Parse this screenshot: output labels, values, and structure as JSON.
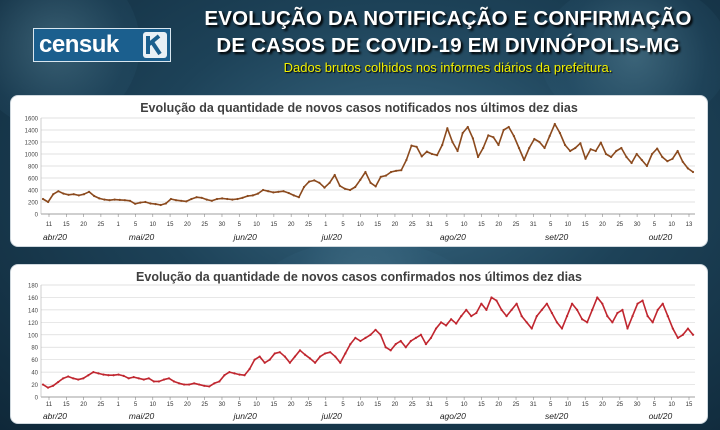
{
  "header": {
    "logo_text": "censuk",
    "logo_tagline": "",
    "title_line1": "EVOLUÇÃO DA NOTIFICAÇÃO E CONFIRMAÇÃO",
    "title_line2": "DE CASOS DE COVID-19 EM DIVINÓPOLIS-MG",
    "subtitle": "Dados brutos colhidos nos informes diários da prefeitura."
  },
  "colors": {
    "notified_line": "#8b4a1e",
    "confirmed_line": "#c0262f",
    "title_yellow": "#f2f200"
  },
  "chart_data": [
    {
      "type": "line",
      "title": "Evolução da quantidade de novos casos notificados nos últimos dez dias",
      "ylim": [
        0,
        1600
      ],
      "yticks": [
        0,
        200,
        400,
        600,
        800,
        1000,
        1200,
        1400,
        1600
      ],
      "grid": true,
      "xlabel": "",
      "ylabel": "",
      "day_ticks": [
        "11",
        "15",
        "20",
        "25",
        "1",
        "5",
        "10",
        "15",
        "20",
        "25",
        "30",
        "5",
        "10",
        "15",
        "20",
        "25",
        "1",
        "5",
        "10",
        "15",
        "20",
        "25",
        "31",
        "5",
        "10",
        "15",
        "20",
        "25",
        "31",
        "5",
        "10",
        "15",
        "20",
        "25",
        "30",
        "5",
        "10",
        "13"
      ],
      "months": [
        {
          "label": "abr/20",
          "tick_index": 0
        },
        {
          "label": "mai/20",
          "tick_index": 5
        },
        {
          "label": "jun/20",
          "tick_index": 11
        },
        {
          "label": "jul/20",
          "tick_index": 16
        },
        {
          "label": "ago/20",
          "tick_index": 23
        },
        {
          "label": "set/20",
          "tick_index": 29
        },
        {
          "label": "out/20",
          "tick_index": 35
        }
      ],
      "series": [
        {
          "values": [
            250,
            200,
            330,
            380,
            340,
            320,
            330,
            310,
            330,
            370,
            300,
            260,
            240,
            230,
            240,
            235,
            230,
            220,
            170,
            190,
            200,
            175,
            165,
            150,
            175,
            250,
            230,
            220,
            210,
            250,
            280,
            270,
            240,
            220,
            250,
            260,
            250,
            240,
            250,
            270,
            300,
            310,
            340,
            400,
            380,
            360,
            370,
            380,
            350,
            310,
            280,
            450,
            540,
            560,
            520,
            440,
            520,
            650,
            470,
            420,
            400,
            450,
            570,
            700,
            520,
            460,
            620,
            640,
            700,
            720,
            730,
            900,
            1140,
            1120,
            960,
            1040,
            1000,
            980,
            1150,
            1430,
            1200,
            1050,
            1350,
            1450,
            1260,
            950,
            1100,
            1310,
            1280,
            1150,
            1400,
            1450,
            1300,
            1100,
            900,
            1100,
            1250,
            1200,
            1100,
            1300,
            1500,
            1350,
            1150,
            1050,
            1100,
            1180,
            920,
            1080,
            1050,
            1190,
            1000,
            950,
            1050,
            1100,
            950,
            850,
            1000,
            900,
            800,
            1000,
            1090,
            950,
            880,
            920,
            1050,
            870,
            760,
            700
          ]
        }
      ]
    },
    {
      "type": "line",
      "title": "Evolução da quantidade de novos casos confirmados nos últimos dez dias",
      "ylim": [
        0,
        180
      ],
      "yticks": [
        0,
        20,
        40,
        60,
        80,
        100,
        120,
        140,
        160,
        180
      ],
      "grid": true,
      "xlabel": "",
      "ylabel": "",
      "day_ticks": [
        "11",
        "15",
        "20",
        "25",
        "1",
        "5",
        "10",
        "15",
        "20",
        "25",
        "30",
        "5",
        "10",
        "15",
        "20",
        "25",
        "1",
        "5",
        "10",
        "15",
        "20",
        "25",
        "31",
        "5",
        "10",
        "15",
        "20",
        "25",
        "31",
        "5",
        "10",
        "15",
        "20",
        "25",
        "30",
        "5",
        "10",
        "15"
      ],
      "months": [
        {
          "label": "abr/20",
          "tick_index": 0
        },
        {
          "label": "mai/20",
          "tick_index": 5
        },
        {
          "label": "jun/20",
          "tick_index": 11
        },
        {
          "label": "jul/20",
          "tick_index": 16
        },
        {
          "label": "ago/20",
          "tick_index": 23
        },
        {
          "label": "set/20",
          "tick_index": 29
        },
        {
          "label": "out/20",
          "tick_index": 35
        }
      ],
      "series": [
        {
          "values": [
            20,
            15,
            18,
            24,
            30,
            33,
            30,
            28,
            30,
            35,
            40,
            38,
            36,
            35,
            35,
            36,
            34,
            30,
            32,
            30,
            28,
            30,
            25,
            25,
            28,
            30,
            25,
            22,
            20,
            20,
            22,
            20,
            18,
            17,
            22,
            25,
            35,
            40,
            38,
            36,
            35,
            45,
            60,
            65,
            55,
            60,
            70,
            72,
            65,
            55,
            65,
            75,
            68,
            62,
            55,
            65,
            70,
            72,
            65,
            55,
            70,
            85,
            95,
            90,
            95,
            100,
            108,
            100,
            80,
            75,
            85,
            90,
            80,
            90,
            95,
            100,
            85,
            95,
            110,
            120,
            115,
            125,
            118,
            130,
            140,
            130,
            135,
            150,
            140,
            160,
            155,
            140,
            130,
            140,
            150,
            130,
            120,
            110,
            130,
            140,
            150,
            135,
            120,
            110,
            130,
            150,
            140,
            125,
            120,
            140,
            160,
            150,
            130,
            120,
            135,
            140,
            110,
            130,
            150,
            155,
            130,
            120,
            140,
            150,
            130,
            110,
            95,
            100,
            110,
            100
          ]
        }
      ]
    }
  ]
}
